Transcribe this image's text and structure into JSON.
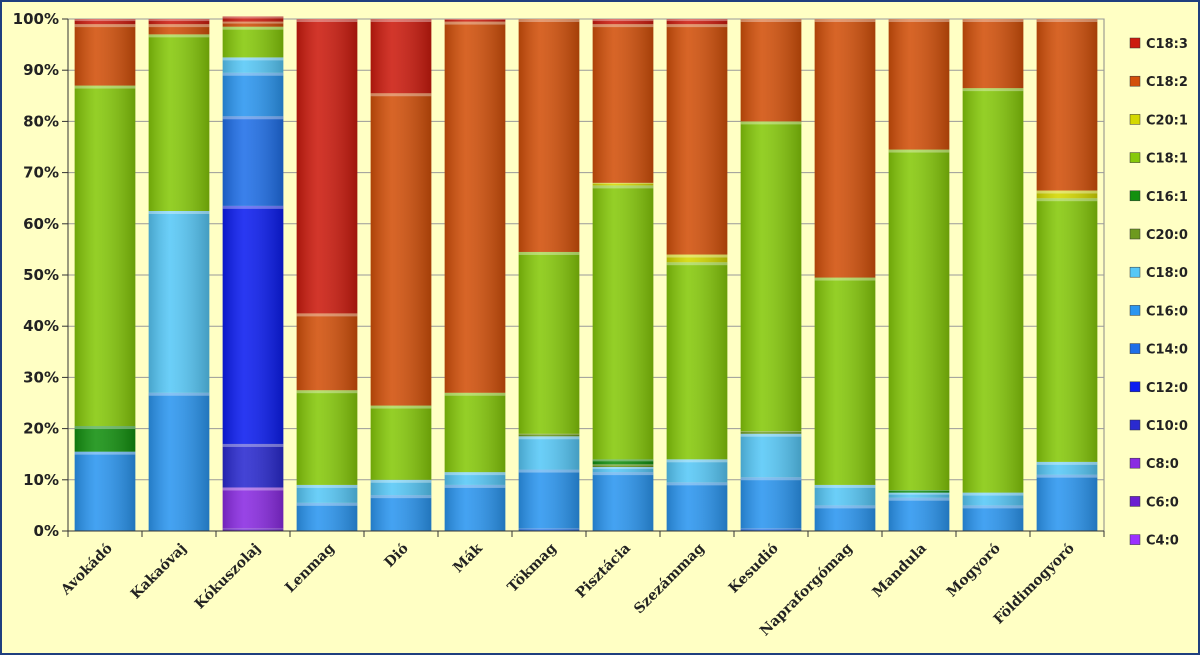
{
  "chart_data": {
    "type": "bar",
    "stacked": true,
    "percent": true,
    "ylim": [
      0,
      100
    ],
    "yticks": [
      "0%",
      "10%",
      "20%",
      "30%",
      "40%",
      "50%",
      "60%",
      "70%",
      "80%",
      "90%",
      "100%"
    ],
    "grid": true,
    "legend_position": "right",
    "categories": [
      "Avokádó",
      "Kakaóvaj",
      "Kókuszolaj",
      "Lenmag",
      "Dió",
      "Mák",
      "Tökmag",
      "Pisztácia",
      "Szezámmag",
      "Kesudió",
      "Napraforgómag",
      "Mandula",
      "Mogyoró",
      "Földimogyoró"
    ],
    "series": [
      {
        "name": "C4:0",
        "color": "#9b30ff",
        "values": [
          0,
          0,
          0,
          0,
          0,
          0,
          0,
          0,
          0,
          0,
          0,
          0,
          0,
          0
        ]
      },
      {
        "name": "C6:0",
        "color": "#6a1fd0",
        "values": [
          0,
          0,
          0.5,
          0,
          0,
          0,
          0,
          0,
          0,
          0,
          0,
          0,
          0,
          0
        ]
      },
      {
        "name": "C8:0",
        "color": "#8a2be2",
        "values": [
          0,
          0,
          8,
          0,
          0,
          0,
          0,
          0,
          0,
          0,
          0,
          0,
          0,
          0
        ]
      },
      {
        "name": "C10:0",
        "color": "#2a2ad0",
        "values": [
          0,
          0,
          8.5,
          0,
          0,
          0,
          0,
          0,
          0,
          0,
          0,
          0,
          0,
          0
        ]
      },
      {
        "name": "C12:0",
        "color": "#0c1df0",
        "values": [
          0,
          0,
          46.5,
          0,
          0,
          0,
          0,
          0,
          0,
          0,
          0,
          0,
          0,
          0
        ]
      },
      {
        "name": "C14:0",
        "color": "#1f6fe8",
        "values": [
          0,
          0,
          17.5,
          0,
          0,
          0,
          0.5,
          0,
          0,
          0.5,
          0,
          0,
          0,
          0
        ]
      },
      {
        "name": "C16:0",
        "color": "#2b96f0",
        "values": [
          15.5,
          27,
          8.5,
          5.5,
          7,
          9,
          11.5,
          11.5,
          9.5,
          10,
          5,
          6.5,
          5,
          11
        ]
      },
      {
        "name": "C18:0",
        "color": "#57c8f7",
        "values": [
          0,
          35.5,
          3,
          3.5,
          3,
          2.5,
          6.5,
          1,
          4.5,
          8.5,
          4,
          1,
          2.5,
          2.5
        ]
      },
      {
        "name": "C20:0",
        "color": "#6e9a1e",
        "values": [
          0,
          0,
          0,
          0,
          0,
          0,
          0.5,
          0.5,
          0,
          0.5,
          0,
          0,
          0,
          0
        ]
      },
      {
        "name": "C16:1",
        "color": "#13900f",
        "values": [
          5,
          0,
          0,
          0,
          0,
          0,
          0,
          1,
          0,
          0,
          0,
          0.5,
          0,
          0
        ]
      },
      {
        "name": "C18:1",
        "color": "#86c90a",
        "values": [
          66.5,
          34.5,
          6,
          18.5,
          14.5,
          15.5,
          35.5,
          53.5,
          38.5,
          60.5,
          40.5,
          66.5,
          79,
          51.5
        ]
      },
      {
        "name": "C20:1",
        "color": "#d4d800",
        "values": [
          0,
          0,
          0,
          0,
          0,
          0,
          0,
          0.5,
          1.5,
          0,
          0,
          0,
          0,
          1.5
        ]
      },
      {
        "name": "C18:2",
        "color": "#d2500a",
        "values": [
          12,
          2,
          1,
          15,
          61,
          72.5,
          45.5,
          31,
          45,
          20,
          50.5,
          25.5,
          13.5,
          33.5
        ]
      },
      {
        "name": "C18:3",
        "color": "#cc1b0e",
        "values": [
          1,
          1,
          1,
          57.5,
          14.5,
          0.5,
          0,
          1,
          1,
          0,
          0,
          0,
          0,
          0
        ]
      }
    ],
    "title": "",
    "xlabel": "",
    "ylabel": ""
  }
}
